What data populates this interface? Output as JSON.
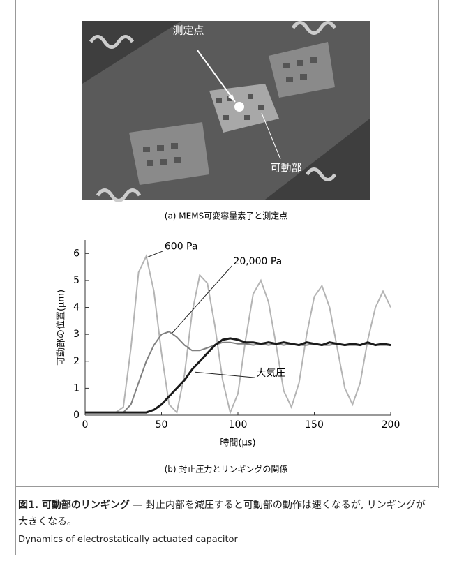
{
  "photo": {
    "labels": [
      "測定点",
      "可動部"
    ],
    "caption": "(a) MEMS可変容量素子と測定点"
  },
  "chart_data": {
    "type": "line",
    "title": "(b) 封止圧力とリンギングの関係",
    "xlabel": "時間(μs)",
    "ylabel": "可動部の位置(μm)",
    "x": [
      0,
      5,
      10,
      15,
      20,
      25,
      30,
      35,
      40,
      45,
      50,
      55,
      60,
      65,
      70,
      75,
      80,
      85,
      90,
      95,
      100,
      105,
      110,
      115,
      120,
      125,
      130,
      135,
      140,
      145,
      150,
      155,
      160,
      165,
      170,
      175,
      180,
      185,
      190,
      195,
      200
    ],
    "series": [
      {
        "name": "600 Pa",
        "color": "#b4b4b4",
        "values": [
          0.1,
          0.1,
          0.1,
          0.1,
          0.1,
          0.3,
          2.5,
          5.3,
          5.9,
          4.6,
          2.3,
          0.4,
          0.1,
          1.5,
          3.8,
          5.2,
          4.9,
          3.3,
          1.3,
          0.1,
          0.8,
          2.8,
          4.5,
          5.0,
          4.2,
          2.6,
          0.9,
          0.3,
          1.2,
          3.0,
          4.4,
          4.8,
          4.0,
          2.5,
          1.0,
          0.4,
          1.2,
          2.8,
          4.0,
          4.6,
          4.0
        ]
      },
      {
        "name": "20,000 Pa",
        "color": "#808080",
        "values": [
          0.1,
          0.1,
          0.1,
          0.1,
          0.1,
          0.1,
          0.4,
          1.2,
          2.0,
          2.6,
          3.0,
          3.1,
          2.9,
          2.6,
          2.4,
          2.4,
          2.5,
          2.6,
          2.7,
          2.7,
          2.65,
          2.65,
          2.6,
          2.65,
          2.6,
          2.65,
          2.6,
          2.65,
          2.6,
          2.6,
          2.65,
          2.6,
          2.6,
          2.65,
          2.6,
          2.6,
          2.6,
          2.65,
          2.6,
          2.6,
          2.6
        ]
      },
      {
        "name": "大気圧",
        "color": "#1a1a1a",
        "values": [
          0.1,
          0.1,
          0.1,
          0.1,
          0.1,
          0.1,
          0.1,
          0.1,
          0.1,
          0.2,
          0.4,
          0.7,
          1.0,
          1.3,
          1.7,
          2.0,
          2.3,
          2.6,
          2.8,
          2.85,
          2.8,
          2.7,
          2.7,
          2.65,
          2.7,
          2.65,
          2.7,
          2.65,
          2.6,
          2.7,
          2.65,
          2.6,
          2.7,
          2.65,
          2.6,
          2.65,
          2.6,
          2.7,
          2.6,
          2.65,
          2.6
        ]
      }
    ],
    "xlim": [
      0,
      200
    ],
    "xticks": [
      0,
      50,
      100,
      150,
      200
    ],
    "ylim": [
      0,
      6.5
    ],
    "yticks": [
      0,
      1,
      2,
      3,
      4,
      5,
      6
    ]
  },
  "caption": {
    "title": "図1. 可動部のリンギング",
    "text": "— 封止内部を減圧すると可動部の動作は速くなるが, リンギングが大きくなる。",
    "english": "Dynamics of electrostatically actuated capacitor"
  }
}
